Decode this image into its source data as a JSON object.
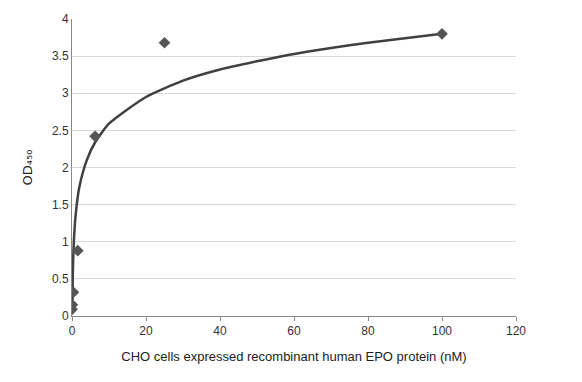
{
  "chart_data": {
    "type": "scatter",
    "x_label": "CHO cells expressed recombinant human EPO protein (nM)",
    "y_label": "OD₄₅₀",
    "xlim": [
      0,
      120
    ],
    "xticks": [
      0,
      20,
      40,
      60,
      80,
      100,
      120
    ],
    "ylim": [
      0,
      4
    ],
    "yticks": [
      0,
      0.5,
      1,
      1.5,
      2,
      2.5,
      3,
      3.5,
      4
    ],
    "grid": true,
    "series": [
      {
        "type": "scatter",
        "marker": "diamond",
        "color": "#555555",
        "x": [
          0.024,
          0.098,
          0.39,
          1.56,
          6.25,
          25,
          100
        ],
        "values": [
          0.09,
          0.15,
          0.32,
          0.88,
          2.42,
          3.68,
          3.8
        ]
      },
      {
        "type": "line",
        "line_style": "solid",
        "color": "#404040",
        "x": [
          0.08,
          0.2,
          0.5,
          1,
          2,
          4,
          6.25,
          10,
          20,
          30,
          40,
          50,
          60,
          70,
          80,
          90,
          100
        ],
        "values": [
          0.04,
          0.52,
          1.0,
          1.37,
          1.74,
          2.1,
          2.34,
          2.59,
          2.95,
          3.17,
          3.32,
          3.43,
          3.53,
          3.61,
          3.68,
          3.74,
          3.8
        ]
      }
    ]
  }
}
